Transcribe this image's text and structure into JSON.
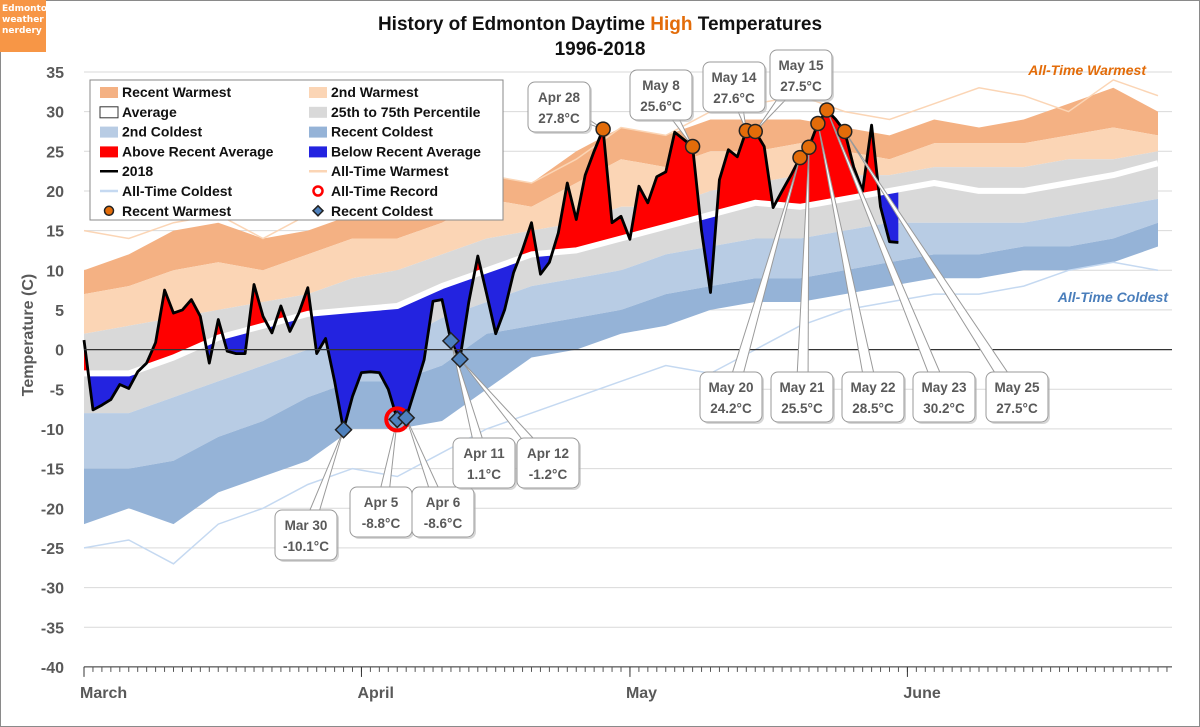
{
  "logo": {
    "lines": [
      "Edmonton",
      "weather",
      "nerdery"
    ]
  },
  "chart_data": {
    "type": "area",
    "title": {
      "pre": "History of Edmonton Daytime ",
      "highlight": "High",
      "post": " Temperatures",
      "line2": "1996-2018"
    },
    "ylabel": "Temperature (C)",
    "xlabel": "",
    "ylim": [
      -40,
      35
    ],
    "yticks": [
      35,
      30,
      25,
      20,
      15,
      10,
      5,
      0,
      -5,
      -10,
      -15,
      -20,
      -25,
      -30,
      -35,
      -40
    ],
    "xticks": [
      {
        "date": "Mar 1",
        "label": "March"
      },
      {
        "date": "Apr 1",
        "label": "April"
      },
      {
        "date": "May 1",
        "label": "May"
      },
      {
        "date": "Jun 1",
        "label": "June"
      }
    ],
    "xlim": [
      "Mar 1",
      "Jun 30"
    ],
    "grid": true,
    "legend_position": "top-left",
    "colors": {
      "recent_warmest": "#f4b183",
      "second_warmest": "#fbd5b5",
      "p25_p75": "#d9d9d9",
      "average": "#ffffff",
      "second_coldest": "#b8cce4",
      "recent_coldest": "#95b3d7",
      "above": "#ff0000",
      "below": "#2323e0",
      "line_2018": "#000000",
      "all_time_warmest": "#fbd5b5",
      "all_time_coldest": "#c5d9f1",
      "record": "#ff0000",
      "marker_warm": "#e36c09",
      "marker_cold": "#4f81bd",
      "accent": "#e36c09",
      "cold_text": "#4a7ebb"
    },
    "band_dates": [
      "Mar 1",
      "Mar 6",
      "Mar 11",
      "Mar 16",
      "Mar 21",
      "Mar 26",
      "Mar 31",
      "Apr 5",
      "Apr 10",
      "Apr 15",
      "Apr 20",
      "Apr 25",
      "Apr 30",
      "May 5",
      "May 10",
      "May 15",
      "May 20",
      "May 25",
      "May 30",
      "Jun 4",
      "Jun 9",
      "Jun 14",
      "Jun 19",
      "Jun 24",
      "Jun 29"
    ],
    "series": {
      "all_time_warmest": [
        15,
        14,
        16,
        17,
        14,
        17,
        19,
        18,
        20,
        22,
        21,
        24,
        28,
        27,
        30,
        31,
        32,
        30,
        29,
        31,
        33,
        32,
        30,
        34,
        32
      ],
      "recent_warmest": [
        10,
        12,
        15,
        16,
        14,
        15,
        17,
        17,
        19,
        22,
        21,
        25,
        28,
        27,
        29,
        29,
        29,
        28,
        27,
        29,
        28,
        29,
        31,
        33,
        30
      ],
      "second_warmest": [
        7,
        8,
        10,
        11,
        10,
        12,
        14,
        14,
        16,
        19,
        18,
        21,
        24,
        23,
        25,
        25,
        26,
        25,
        24,
        26,
        26,
        26,
        27,
        28,
        27
      ],
      "p75": [
        2,
        3,
        4,
        5,
        6,
        7,
        9,
        10,
        12,
        14,
        15,
        16,
        18,
        18,
        20,
        21,
        22,
        22,
        22,
        23,
        23,
        23,
        24,
        24,
        25
      ],
      "average": [
        -3,
        -3,
        -1,
        1.5,
        3,
        4.5,
        5,
        5.5,
        8,
        10,
        12,
        12.5,
        14,
        15.5,
        17,
        18.5,
        18,
        19,
        20,
        21,
        20,
        20,
        21,
        22,
        23.5
      ],
      "p25": [
        -8,
        -8,
        -6,
        -4,
        -2,
        0,
        1,
        1,
        4,
        6,
        8,
        9,
        10,
        12,
        13,
        14,
        14,
        15,
        16,
        16,
        16,
        16,
        17,
        18,
        19
      ],
      "second_coldest": [
        -15,
        -15,
        -14,
        -11,
        -9,
        -6,
        -4,
        -4,
        -2,
        2,
        3,
        4,
        5,
        7,
        8,
        9,
        9,
        10,
        11,
        12,
        12,
        13,
        13,
        14,
        16
      ],
      "recent_coldest": [
        -22,
        -20,
        -22,
        -18,
        -16,
        -14,
        -10,
        -10,
        -9,
        -5,
        -1,
        0,
        2,
        3,
        5,
        6,
        6,
        7,
        8,
        9,
        9,
        10,
        10,
        11,
        13
      ],
      "all_time_coldest": [
        -25,
        -24,
        -27,
        -22,
        -20,
        -17,
        -15,
        -16,
        -13,
        -10,
        -8,
        -6,
        -4,
        -2,
        -3,
        0,
        3,
        5,
        6,
        7,
        7,
        8,
        10,
        11,
        10
      ]
    },
    "year_2018": {
      "Mar": [
        1.2,
        -7.6,
        -7,
        -6.3,
        -4.4,
        -4.9,
        -2.8,
        -1.7,
        0.9,
        7.5,
        4.6,
        5,
        6.3,
        4.2,
        -1.7,
        3.8,
        -0.2,
        -0.5,
        -0.5,
        8.2,
        4.2,
        2.1,
        5.5,
        2.3,
        4.6,
        7.8,
        -0.5,
        1.4,
        -4,
        -10.1,
        -5.9
      ],
      "Apr": [
        -2.9,
        -2.8,
        -2.9,
        -5,
        -8.8,
        -8.6,
        -5,
        -1.3,
        6.1,
        6.3,
        1.1,
        -1.2,
        6,
        11.8,
        7,
        2,
        5,
        9.7,
        12.6,
        16,
        9.5,
        11,
        14.7,
        21,
        16.4,
        22,
        25,
        27.8,
        16,
        16.8
      ],
      "May": [
        13.9,
        20.6,
        18.5,
        21.8,
        22.4,
        27.4,
        26.5,
        25.6,
        15,
        7.2,
        21.4,
        25.2,
        24.3,
        27.6,
        27.5,
        25.6,
        17.9,
        20,
        22,
        24.2,
        25.5,
        28.5,
        30.2,
        29,
        27.5,
        23,
        20,
        28.3,
        18,
        13.6,
        13.5
      ]
    },
    "legend": [
      {
        "label": "Recent Warmest",
        "key": "recent_warmest",
        "kind": "box"
      },
      {
        "label": "2nd Warmest",
        "key": "second_warmest",
        "kind": "box"
      },
      {
        "label": "Average",
        "key": "average",
        "kind": "outline"
      },
      {
        "label": "25th to 75th Percentile",
        "key": "p25_p75",
        "kind": "box"
      },
      {
        "label": "2nd Coldest",
        "key": "second_coldest",
        "kind": "box"
      },
      {
        "label": "Recent Coldest",
        "key": "recent_coldest",
        "kind": "box"
      },
      {
        "label": "Above Recent Average",
        "key": "above",
        "kind": "box"
      },
      {
        "label": "Below Recent Average",
        "key": "below",
        "kind": "box"
      },
      {
        "label": "2018",
        "key": "line_2018",
        "kind": "line"
      },
      {
        "label": "All-Time Warmest",
        "key": "all_time_warmest",
        "kind": "line"
      },
      {
        "label": "All-Time Coldest",
        "key": "all_time_coldest",
        "kind": "line"
      },
      {
        "label": "All-Time Record",
        "key": "record",
        "kind": "ring"
      },
      {
        "label": "Recent Warmest",
        "key": "marker_warm",
        "kind": "dot"
      },
      {
        "label": "Recent Coldest",
        "key": "marker_cold",
        "kind": "diamond"
      }
    ],
    "series_labels": {
      "all_time_warmest": "All-Time Warmest",
      "all_time_coldest": "All-Time Coldest"
    },
    "annotations": [
      {
        "date": "Apr 28",
        "value": "27.8°C",
        "kind": "warm"
      },
      {
        "date": "May 8",
        "value": "25.6°C",
        "kind": "warm"
      },
      {
        "date": "May 14",
        "value": "27.6°C",
        "kind": "warm"
      },
      {
        "date": "May 15",
        "value": "27.5°C",
        "kind": "warm"
      },
      {
        "date": "May 20",
        "value": "24.2°C",
        "kind": "warm"
      },
      {
        "date": "May 21",
        "value": "25.5°C",
        "kind": "warm"
      },
      {
        "date": "May 22",
        "value": "28.5°C",
        "kind": "warm"
      },
      {
        "date": "May 23",
        "value": "30.2°C",
        "kind": "warm"
      },
      {
        "date": "May 25",
        "value": "27.5°C",
        "kind": "warm"
      },
      {
        "date": "Mar 30",
        "value": "-10.1°C",
        "kind": "cold"
      },
      {
        "date": "Apr 5",
        "value": "-8.8°C",
        "kind": "cold",
        "all_time_record": true
      },
      {
        "date": "Apr 6",
        "value": "-8.6°C",
        "kind": "cold"
      },
      {
        "date": "Apr 11",
        "value": "1.1°C",
        "kind": "cold"
      },
      {
        "date": "Apr 12",
        "value": "-1.2°C",
        "kind": "cold"
      }
    ]
  }
}
